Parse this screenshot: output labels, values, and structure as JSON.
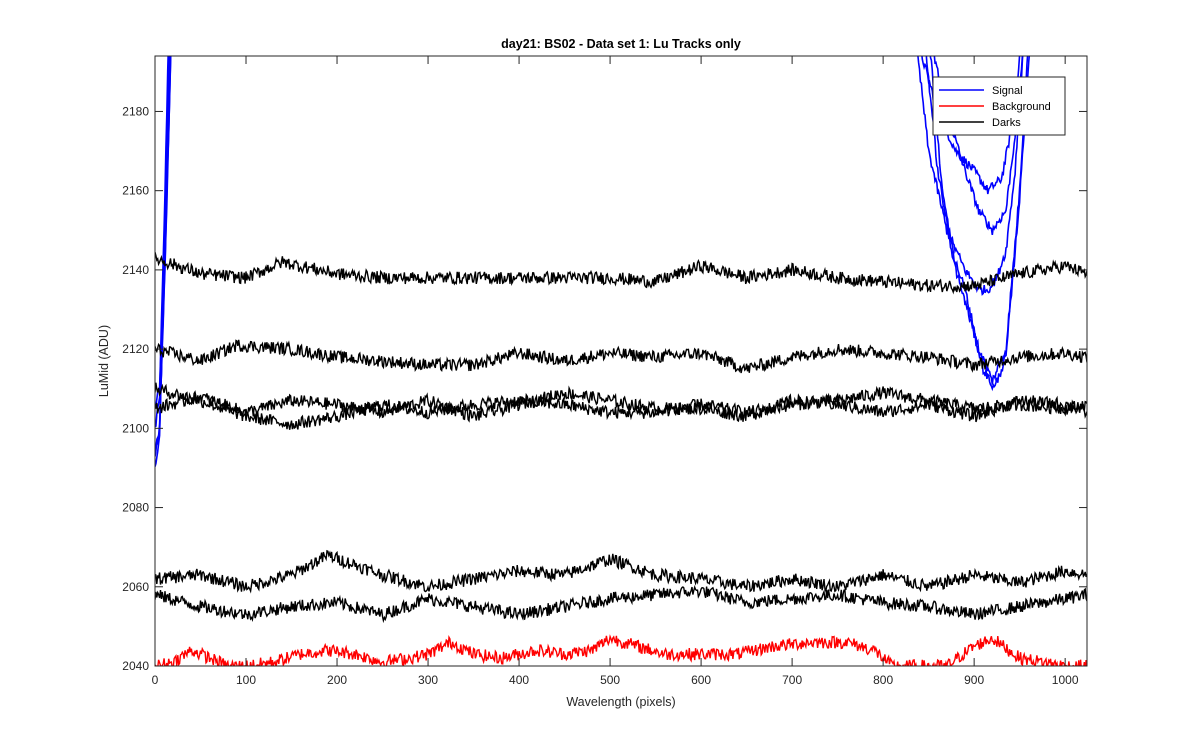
{
  "chart_data": {
    "type": "line",
    "title": "day21: BS02 - Data set 1: Lu Tracks only",
    "xlabel": "Wavelength (pixels)",
    "ylabel": "LuMid (ADU)",
    "xlim": [
      0,
      1024
    ],
    "ylim": [
      2040,
      2194
    ],
    "xticks": [
      0,
      100,
      200,
      300,
      400,
      500,
      600,
      700,
      800,
      900,
      1000
    ],
    "yticks": [
      2040,
      2060,
      2080,
      2100,
      2120,
      2140,
      2160,
      2180
    ],
    "grid": false,
    "legend": {
      "location": "top-right",
      "entries": [
        {
          "label": "Signal",
          "color": "#0000ff"
        },
        {
          "label": "Background",
          "color": "#ff0000"
        },
        {
          "label": "Darks",
          "color": "#000000"
        }
      ]
    },
    "series": [
      {
        "group": "Signal",
        "color": "#0000ff",
        "x": [
          0,
          5,
          10,
          15,
          835,
          860,
          880,
          900,
          915,
          930,
          945,
          950,
          958
        ],
        "y": [
          2105,
          2110,
          2150,
          2200,
          2200,
          2180,
          2170,
          2165,
          2160,
          2163,
          2180,
          2195,
          2200
        ]
      },
      {
        "group": "Signal",
        "color": "#0000ff",
        "x": [
          0,
          5,
          10,
          16,
          850,
          870,
          890,
          905,
          920,
          935,
          948,
          955
        ],
        "y": [
          2100,
          2108,
          2145,
          2200,
          2200,
          2180,
          2165,
          2155,
          2150,
          2155,
          2180,
          2200
        ]
      },
      {
        "group": "Signal",
        "color": "#0000ff",
        "x": [
          0,
          5,
          10,
          17,
          835,
          850,
          870,
          890,
          905,
          915,
          925,
          935,
          945,
          955
        ],
        "y": [
          2090,
          2098,
          2140,
          2200,
          2200,
          2170,
          2150,
          2140,
          2135,
          2135,
          2138,
          2145,
          2165,
          2200
        ]
      },
      {
        "group": "Signal",
        "color": "#0000ff",
        "x": [
          0,
          5,
          12,
          18,
          845,
          860,
          875,
          890,
          905,
          920,
          935,
          950,
          960
        ],
        "y": [
          2095,
          2100,
          2150,
          2200,
          2200,
          2165,
          2145,
          2135,
          2120,
          2112,
          2120,
          2160,
          2200
        ]
      },
      {
        "group": "Signal",
        "color": "#0000ff",
        "x": [
          0,
          5,
          12,
          18,
          850,
          865,
          880,
          895,
          910,
          922,
          935,
          950,
          962
        ],
        "y": [
          2093,
          2100,
          2148,
          2200,
          2200,
          2160,
          2140,
          2128,
          2115,
          2110,
          2118,
          2158,
          2200
        ]
      },
      {
        "group": "Darks",
        "color": "#000000",
        "x": [
          0,
          50,
          100,
          140,
          200,
          250,
          300,
          350,
          400,
          450,
          500,
          550,
          600,
          650,
          700,
          750,
          800,
          850,
          900,
          950,
          1000,
          1024
        ],
        "y": [
          2143,
          2139,
          2138,
          2142,
          2139,
          2138,
          2138,
          2138,
          2138,
          2138,
          2138,
          2137,
          2141,
          2138,
          2140,
          2138,
          2137,
          2136,
          2136,
          2139,
          2141,
          2139
        ]
      },
      {
        "group": "Darks",
        "color": "#000000",
        "x": [
          0,
          50,
          90,
          150,
          200,
          250,
          300,
          350,
          400,
          450,
          500,
          550,
          600,
          650,
          700,
          750,
          800,
          850,
          900,
          950,
          1000,
          1024
        ],
        "y": [
          2120,
          2117,
          2121,
          2120,
          2118,
          2117,
          2116,
          2116,
          2119,
          2117,
          2119,
          2118,
          2119,
          2115,
          2118,
          2120,
          2119,
          2118,
          2116,
          2118,
          2119,
          2118
        ]
      },
      {
        "group": "Darks",
        "color": "#000000",
        "x": [
          0,
          50,
          100,
          150,
          200,
          250,
          300,
          350,
          400,
          450,
          500,
          550,
          600,
          650,
          700,
          750,
          800,
          850,
          900,
          950,
          1000,
          1024
        ],
        "y": [
          2110,
          2107,
          2103,
          2101,
          2103,
          2106,
          2104,
          2106,
          2107,
          2106,
          2104,
          2104,
          2106,
          2104,
          2106,
          2107,
          2109,
          2107,
          2105,
          2106,
          2105,
          2106
        ]
      },
      {
        "group": "Darks",
        "color": "#000000",
        "x": [
          0,
          50,
          100,
          150,
          200,
          250,
          300,
          350,
          400,
          450,
          500,
          550,
          600,
          650,
          700,
          750,
          800,
          850,
          900,
          950,
          1000,
          1024
        ],
        "y": [
          2105,
          2108,
          2104,
          2107,
          2106,
          2104,
          2107,
          2103,
          2106,
          2109,
          2107,
          2105,
          2105,
          2103,
          2107,
          2106,
          2104,
          2106,
          2103,
          2107,
          2106,
          2104
        ]
      },
      {
        "group": "Darks",
        "color": "#000000",
        "x": [
          0,
          50,
          100,
          150,
          190,
          250,
          300,
          350,
          400,
          450,
          500,
          550,
          600,
          650,
          700,
          750,
          800,
          850,
          900,
          950,
          1000,
          1024
        ],
        "y": [
          2062,
          2063,
          2060,
          2063,
          2068,
          2063,
          2060,
          2062,
          2064,
          2063,
          2067,
          2063,
          2062,
          2060,
          2062,
          2060,
          2063,
          2060,
          2063,
          2061,
          2064,
          2063
        ]
      },
      {
        "group": "Darks",
        "color": "#000000",
        "x": [
          0,
          50,
          100,
          150,
          200,
          250,
          300,
          350,
          400,
          450,
          500,
          550,
          600,
          650,
          700,
          750,
          800,
          850,
          900,
          950,
          1000,
          1024
        ],
        "y": [
          2058,
          2055,
          2053,
          2055,
          2056,
          2053,
          2057,
          2055,
          2053,
          2055,
          2057,
          2058,
          2059,
          2056,
          2057,
          2058,
          2056,
          2055,
          2053,
          2055,
          2057,
          2058
        ]
      },
      {
        "group": "Background",
        "color": "#ff0000",
        "x": [
          0,
          20,
          40,
          60,
          80,
          100,
          130,
          160,
          190,
          220,
          250,
          280,
          300,
          325,
          350,
          380,
          420,
          450,
          480,
          500,
          530,
          560,
          600,
          640,
          680,
          720,
          760,
          790,
          810,
          840,
          870,
          900,
          920,
          950,
          1000,
          1024
        ],
        "y": [
          2040,
          2041,
          2044,
          2042,
          2040,
          2040,
          2041,
          2043,
          2044,
          2043,
          2041,
          2042,
          2043,
          2046,
          2043,
          2042,
          2044,
          2043,
          2044,
          2047,
          2045,
          2043,
          2043,
          2043,
          2045,
          2046,
          2046,
          2044,
          2040,
          2040,
          2040,
          2045,
          2047,
          2042,
          2040,
          2040
        ]
      }
    ]
  }
}
